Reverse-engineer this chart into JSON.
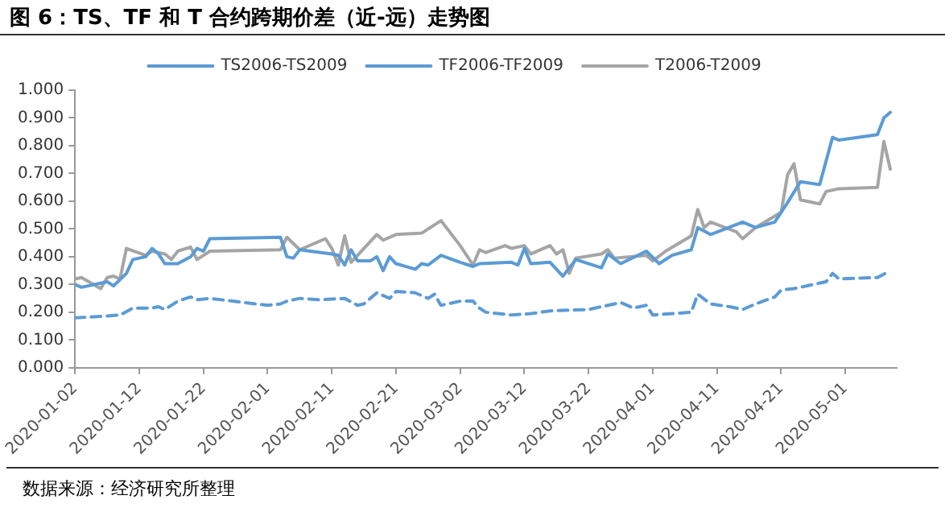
{
  "chart_data": {
    "type": "line",
    "title": "图 6：TS、TF 和 T 合约跨期价差（近-远）走势图",
    "annotations": [
      "数据来源：经济研究所整理"
    ],
    "legend": "top",
    "grid": false,
    "marker": "none",
    "xlim": [
      "2020-01-02",
      "2020-05-09"
    ],
    "xticks": [
      "2020-01-02",
      "2020-01-12",
      "2020-01-22",
      "2020-02-01",
      "2020-02-11",
      "2020-02-21",
      "2020-03-02",
      "2020-03-12",
      "2020-03-22",
      "2020-04-01",
      "2020-04-11",
      "2020-04-21",
      "2020-05-01"
    ],
    "ylim": [
      0,
      1
    ],
    "yticks": [
      {
        "value": 0,
        "label": "0.000"
      },
      {
        "value": 0.1,
        "label": "0.100"
      },
      {
        "value": 0.2,
        "label": "0.200"
      },
      {
        "value": 0.3,
        "label": "0.300"
      },
      {
        "value": 0.4,
        "label": "0.400"
      },
      {
        "value": 0.5,
        "label": "0.500"
      },
      {
        "value": 0.6,
        "label": "0.600"
      },
      {
        "value": 0.7,
        "label": "0.700"
      },
      {
        "value": 0.8,
        "label": "0.800"
      },
      {
        "value": 0.9,
        "label": "0.900"
      },
      {
        "value": 1,
        "label": "1.000"
      }
    ],
    "series": [
      {
        "name": "TS2006-TS2009",
        "color": "#5b9bd5",
        "line_style": "dashed",
        "x": [
          "2020-01-02",
          "2020-01-06",
          "2020-01-09",
          "2020-01-11",
          "2020-01-14",
          "2020-01-15",
          "2020-01-16",
          "2020-01-18",
          "2020-01-20",
          "2020-01-21",
          "2020-01-23",
          "2020-02-01",
          "2020-02-03",
          "2020-02-04",
          "2020-02-06",
          "2020-02-09",
          "2020-02-13",
          "2020-02-15",
          "2020-02-16",
          "2020-02-18",
          "2020-02-20",
          "2020-02-21",
          "2020-02-24",
          "2020-02-26",
          "2020-02-27",
          "2020-02-28",
          "2020-03-02",
          "2020-03-04",
          "2020-03-05",
          "2020-03-06",
          "2020-03-10",
          "2020-03-13",
          "2020-03-16",
          "2020-03-22",
          "2020-03-24",
          "2020-03-27",
          "2020-03-29",
          "2020-03-31",
          "2020-04-01",
          "2020-04-07",
          "2020-04-08",
          "2020-04-10",
          "2020-04-13",
          "2020-04-15",
          "2020-04-17",
          "2020-04-20",
          "2020-04-21",
          "2020-04-23",
          "2020-04-28",
          "2020-04-29",
          "2020-04-30",
          "2020-05-06",
          "2020-05-08"
        ],
        "values": [
          0.18,
          0.185,
          0.19,
          0.215,
          0.215,
          0.22,
          0.21,
          0.24,
          0.255,
          0.245,
          0.25,
          0.225,
          0.23,
          0.24,
          0.25,
          0.245,
          0.25,
          0.225,
          0.23,
          0.27,
          0.25,
          0.275,
          0.27,
          0.25,
          0.265,
          0.225,
          0.24,
          0.24,
          0.215,
          0.2,
          0.19,
          0.195,
          0.205,
          0.21,
          0.22,
          0.235,
          0.215,
          0.225,
          0.19,
          0.2,
          0.265,
          0.23,
          0.22,
          0.21,
          0.23,
          0.255,
          0.28,
          0.285,
          0.31,
          0.34,
          0.32,
          0.325,
          0.35
        ]
      },
      {
        "name": "TF2006-TF2009",
        "color": "#5b9bd5",
        "line_style": "solid",
        "x": [
          "2020-01-02",
          "2020-01-03",
          "2020-01-07",
          "2020-01-08",
          "2020-01-10",
          "2020-01-11",
          "2020-01-13",
          "2020-01-14",
          "2020-01-15",
          "2020-01-16",
          "2020-01-18",
          "2020-01-20",
          "2020-01-21",
          "2020-01-22",
          "2020-01-23",
          "2020-02-03",
          "2020-02-04",
          "2020-02-05",
          "2020-02-06",
          "2020-02-11",
          "2020-02-12",
          "2020-02-13",
          "2020-02-14",
          "2020-02-15",
          "2020-02-17",
          "2020-02-18",
          "2020-02-19",
          "2020-02-20",
          "2020-02-21",
          "2020-02-24",
          "2020-02-25",
          "2020-02-26",
          "2020-02-28",
          "2020-03-02",
          "2020-03-04",
          "2020-03-05",
          "2020-03-10",
          "2020-03-11",
          "2020-03-12",
          "2020-03-13",
          "2020-03-16",
          "2020-03-18",
          "2020-03-20",
          "2020-03-24",
          "2020-03-25",
          "2020-03-27",
          "2020-03-31",
          "2020-04-02",
          "2020-04-04",
          "2020-04-07",
          "2020-04-08",
          "2020-04-10",
          "2020-04-15",
          "2020-04-17",
          "2020-04-20",
          "2020-04-22",
          "2020-04-24",
          "2020-04-27",
          "2020-04-29",
          "2020-04-30",
          "2020-05-06",
          "2020-05-07",
          "2020-05-08"
        ],
        "values": [
          0.3,
          0.29,
          0.31,
          0.295,
          0.34,
          0.39,
          0.4,
          0.43,
          0.41,
          0.375,
          0.375,
          0.4,
          0.43,
          0.42,
          0.465,
          0.47,
          0.4,
          0.395,
          0.425,
          0.41,
          0.405,
          0.37,
          0.425,
          0.385,
          0.385,
          0.4,
          0.35,
          0.4,
          0.375,
          0.355,
          0.375,
          0.37,
          0.405,
          0.38,
          0.365,
          0.375,
          0.38,
          0.37,
          0.43,
          0.375,
          0.38,
          0.33,
          0.39,
          0.36,
          0.41,
          0.375,
          0.42,
          0.375,
          0.405,
          0.425,
          0.505,
          0.48,
          0.525,
          0.505,
          0.525,
          0.595,
          0.67,
          0.66,
          0.83,
          0.82,
          0.84,
          0.9,
          0.92
        ]
      },
      {
        "name": "T2006-T2009",
        "color": "#a5a5a5",
        "line_style": "solid",
        "x": [
          "2020-01-02",
          "2020-01-03",
          "2020-01-06",
          "2020-01-07",
          "2020-01-08",
          "2020-01-09",
          "2020-01-10",
          "2020-01-13",
          "2020-01-14",
          "2020-01-16",
          "2020-01-17",
          "2020-01-18",
          "2020-01-20",
          "2020-01-21",
          "2020-01-23",
          "2020-02-03",
          "2020-02-04",
          "2020-02-06",
          "2020-02-10",
          "2020-02-11",
          "2020-02-12",
          "2020-02-13",
          "2020-02-14",
          "2020-02-18",
          "2020-02-19",
          "2020-02-21",
          "2020-02-25",
          "2020-02-28",
          "2020-03-02",
          "2020-03-04",
          "2020-03-05",
          "2020-03-06",
          "2020-03-09",
          "2020-03-10",
          "2020-03-12",
          "2020-03-13",
          "2020-03-16",
          "2020-03-17",
          "2020-03-18",
          "2020-03-19",
          "2020-03-20",
          "2020-03-24",
          "2020-03-25",
          "2020-03-26",
          "2020-03-31",
          "2020-04-01",
          "2020-04-03",
          "2020-04-07",
          "2020-04-08",
          "2020-04-09",
          "2020-04-10",
          "2020-04-14",
          "2020-04-15",
          "2020-04-17",
          "2020-04-21",
          "2020-04-22",
          "2020-04-23",
          "2020-04-24",
          "2020-04-27",
          "2020-04-28",
          "2020-04-30",
          "2020-05-06",
          "2020-05-07",
          "2020-05-08"
        ],
        "values": [
          0.32,
          0.325,
          0.285,
          0.325,
          0.33,
          0.32,
          0.43,
          0.405,
          0.42,
          0.41,
          0.39,
          0.42,
          0.435,
          0.39,
          0.42,
          0.425,
          0.47,
          0.425,
          0.465,
          0.43,
          0.37,
          0.475,
          0.38,
          0.48,
          0.46,
          0.48,
          0.485,
          0.53,
          0.44,
          0.37,
          0.425,
          0.415,
          0.44,
          0.43,
          0.44,
          0.41,
          0.44,
          0.41,
          0.425,
          0.34,
          0.395,
          0.41,
          0.425,
          0.395,
          0.405,
          0.385,
          0.42,
          0.475,
          0.57,
          0.505,
          0.525,
          0.49,
          0.465,
          0.505,
          0.56,
          0.695,
          0.735,
          0.605,
          0.59,
          0.635,
          0.645,
          0.65,
          0.815,
          0.715
        ]
      }
    ]
  }
}
